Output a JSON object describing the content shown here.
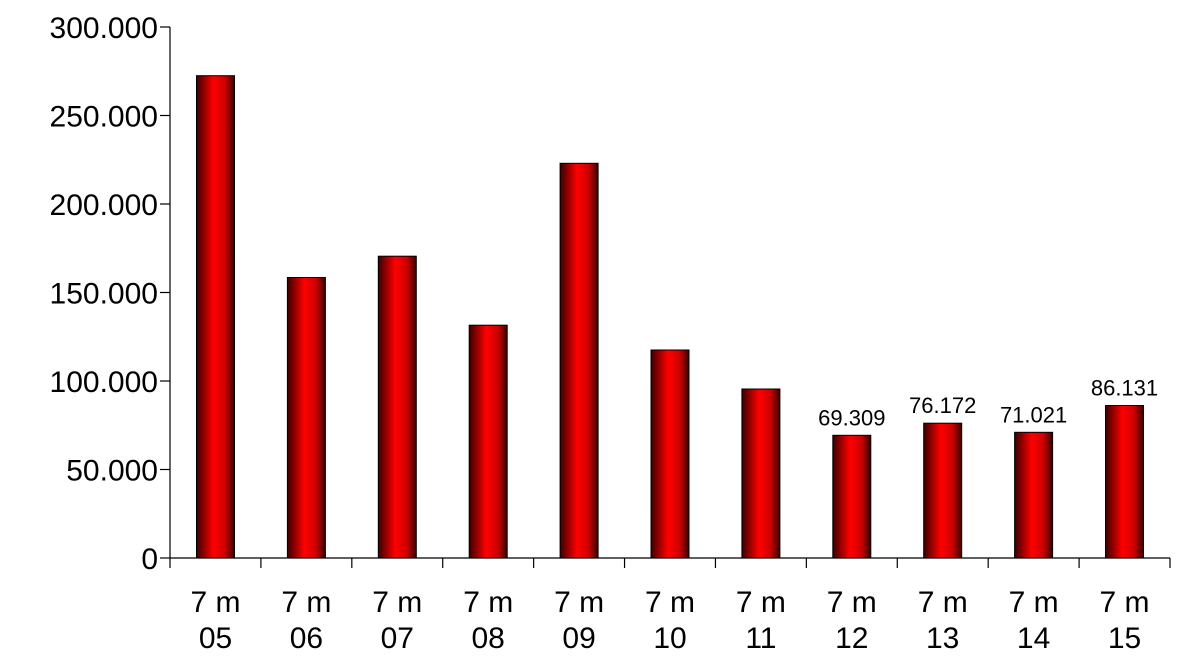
{
  "chart_data": {
    "type": "bar",
    "title": "",
    "xlabel": "",
    "ylabel": "",
    "categories": [
      [
        "7 m",
        "05"
      ],
      [
        "7 m",
        "06"
      ],
      [
        "7 m",
        "07"
      ],
      [
        "7 m",
        "08"
      ],
      [
        "7 m",
        "09"
      ],
      [
        "7 m",
        "10"
      ],
      [
        "7 m",
        "11"
      ],
      [
        "7 m",
        "12"
      ],
      [
        "7 m",
        "13"
      ],
      [
        "7 m",
        "14"
      ],
      [
        "7 m",
        "15"
      ]
    ],
    "values": [
      272500,
      158500,
      170500,
      131500,
      223000,
      117500,
      95500,
      69309,
      76172,
      71021,
      86131
    ],
    "data_labels": [
      null,
      null,
      null,
      null,
      null,
      null,
      null,
      "69.309",
      "76.172",
      "71.021",
      "86.131"
    ],
    "ylim": [
      0,
      300000
    ],
    "yticks": [
      0,
      50000,
      100000,
      150000,
      200000,
      250000,
      300000
    ],
    "ytick_labels": [
      "0",
      "50.000",
      "100.000",
      "150.000",
      "200.000",
      "250.000",
      "300.000"
    ],
    "grid": false,
    "legend": "none",
    "colors": {
      "bar_dark": "#3a0000",
      "bar_mid": "#cc0000",
      "bar_light": "#ff0000",
      "axis": "#000000"
    }
  }
}
